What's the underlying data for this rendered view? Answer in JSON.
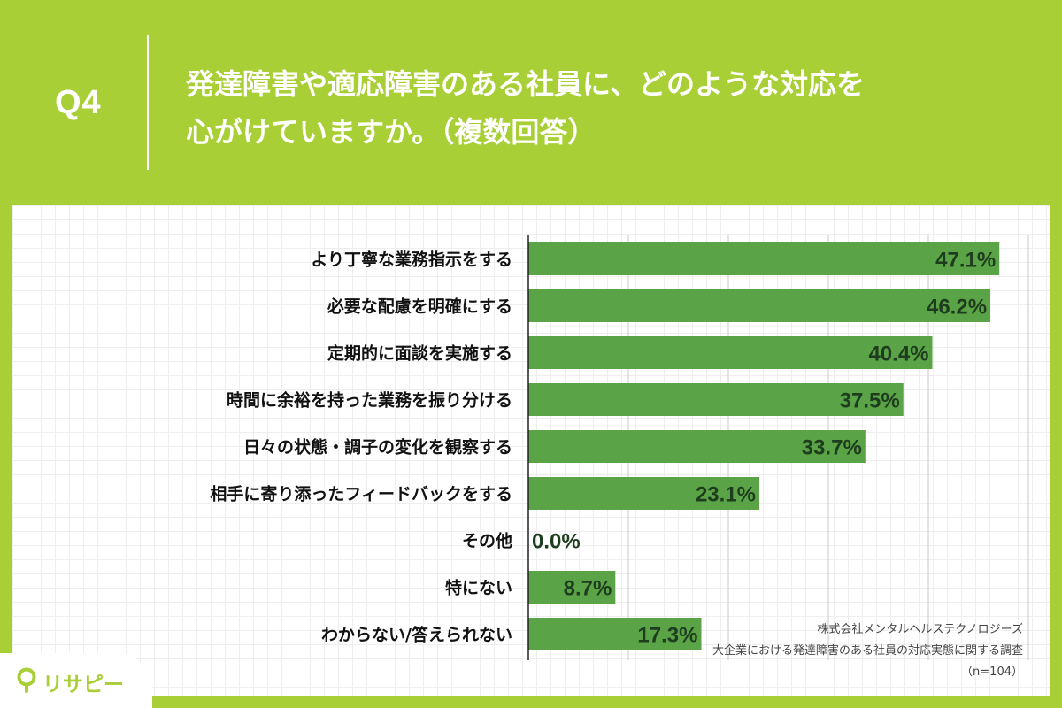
{
  "header": {
    "qnum": "Q4",
    "title_line1": "発達障害や適応障害のある社員に、どのような対応を",
    "title_line2": "心がけていますか。（複数回答）"
  },
  "chart_data": {
    "type": "bar",
    "orientation": "horizontal",
    "categories": [
      "より丁寧な業務指示をする",
      "必要な配慮を明確にする",
      "定期的に面談を実施する",
      "時間に余裕を持った業務を振り分ける",
      "日々の状態・調子の変化を観察する",
      "相手に寄り添ったフィードバックをする",
      "その他",
      "特にない",
      "わからない/答えられない"
    ],
    "values": [
      47.1,
      46.2,
      40.4,
      37.5,
      33.7,
      23.1,
      0.0,
      8.7,
      17.3
    ],
    "value_labels": [
      "47.1%",
      "46.2%",
      "40.4%",
      "37.5%",
      "33.7%",
      "23.1%",
      "0.0%",
      "8.7%",
      "17.3%"
    ],
    "xlim": [
      0,
      50
    ],
    "grid": true,
    "bar_color": "#5aa346",
    "label_color": "#1e3d1e"
  },
  "source": {
    "line1": "株式会社メンタルヘルステクノロジーズ",
    "line2": "大企業における発達障害のある社員の対応実態に関する調査",
    "line3": "（n=104）"
  },
  "logo": {
    "text": "リサピー",
    "icon": "location-pin-icon",
    "color": "#a8cf35"
  },
  "colors": {
    "background": "#a8cf35",
    "panel": "#ffffff"
  }
}
